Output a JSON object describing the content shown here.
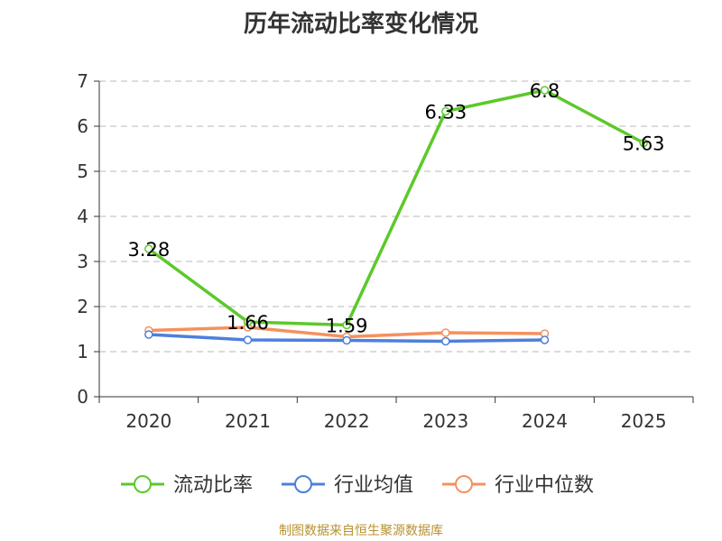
{
  "chart_data": {
    "type": "line",
    "title": "历年流动比率变化情况",
    "categories": [
      "2020",
      "2021",
      "2022",
      "2023",
      "2024",
      "2025"
    ],
    "ylim": [
      0,
      7
    ],
    "yticks": [
      0,
      1,
      2,
      3,
      4,
      5,
      6,
      7
    ],
    "grid": true,
    "legend_position": "bottom",
    "series": [
      {
        "name": "流动比率",
        "color": "#5cc92a",
        "values": [
          3.28,
          1.66,
          1.59,
          6.33,
          6.8,
          5.63
        ],
        "labels": [
          "3.28",
          "1.66",
          "1.59",
          "6.33",
          "6.8",
          "5.63"
        ]
      },
      {
        "name": "行业均值",
        "color": "#4e7fdc",
        "values": [
          1.38,
          1.26,
          1.25,
          1.23,
          1.26,
          null
        ]
      },
      {
        "name": "行业中位数",
        "color": "#f4915e",
        "values": [
          1.47,
          1.54,
          1.33,
          1.42,
          1.4,
          null
        ]
      }
    ]
  },
  "source": "制图数据来自恒生聚源数据库"
}
